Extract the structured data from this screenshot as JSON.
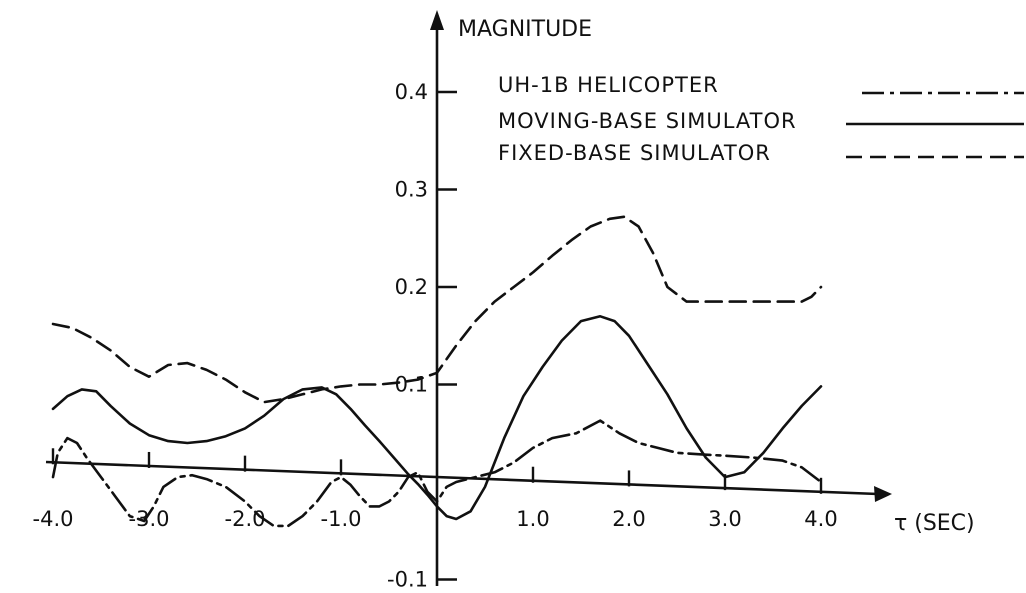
{
  "chart_data": {
    "type": "line",
    "ylabel": "MAGNITUDE",
    "xlabel": "τ (SEC)",
    "x_ticks": [
      {
        "value": -4.0,
        "label": "-4.0"
      },
      {
        "value": -3.0,
        "label": "-3.0"
      },
      {
        "value": -2.0,
        "label": "-2.0"
      },
      {
        "value": -1.0,
        "label": "-1.0"
      },
      {
        "value": 1.0,
        "label": "1.0"
      },
      {
        "value": 2.0,
        "label": "2.0"
      },
      {
        "value": 3.0,
        "label": "3.0"
      },
      {
        "value": 4.0,
        "label": "4.0"
      }
    ],
    "y_ticks": [
      {
        "value": 0.4,
        "label": "0.4"
      },
      {
        "value": 0.3,
        "label": "0.3"
      },
      {
        "value": 0.2,
        "label": "0.2"
      },
      {
        "value": 0.1,
        "label": "0.1"
      },
      {
        "value": -0.1,
        "label": "-0.1"
      }
    ],
    "xlim": [
      -4.0,
      4.0
    ],
    "ylim": [
      -0.1,
      0.45
    ],
    "grid": false,
    "legend_position": "top-right",
    "series": [
      {
        "name": "UH-1B HELICOPTER",
        "style": "dash-dot",
        "x": [
          -4.0,
          -3.95,
          -3.85,
          -3.75,
          -3.65,
          -3.5,
          -3.35,
          -3.2,
          -3.05,
          -2.95,
          -2.85,
          -2.7,
          -2.55,
          -2.4,
          -2.2,
          -2.0,
          -1.85,
          -1.7,
          -1.55,
          -1.4,
          -1.25,
          -1.1,
          -1.0,
          -0.9,
          -0.8,
          -0.7,
          -0.6,
          -0.5,
          -0.4,
          -0.3,
          -0.2,
          -0.1,
          0.0,
          0.1,
          0.2,
          0.4,
          0.6,
          0.8,
          1.0,
          1.2,
          1.45,
          1.7,
          1.9,
          2.1,
          2.3,
          2.5,
          2.8,
          3.0,
          3.3,
          3.6,
          3.8,
          4.0
        ],
        "y": [
          0.005,
          0.03,
          0.045,
          0.04,
          0.025,
          0.005,
          -0.015,
          -0.035,
          -0.04,
          -0.025,
          -0.005,
          0.005,
          0.007,
          0.003,
          -0.005,
          -0.02,
          -0.035,
          -0.045,
          -0.045,
          -0.035,
          -0.02,
          0.0,
          0.005,
          -0.003,
          -0.015,
          -0.025,
          -0.025,
          -0.02,
          -0.01,
          0.005,
          0.01,
          -0.01,
          -0.02,
          -0.005,
          0.0,
          0.005,
          0.01,
          0.02,
          0.035,
          0.045,
          0.05,
          0.063,
          0.05,
          0.04,
          0.035,
          0.03,
          0.028,
          0.027,
          0.025,
          0.022,
          0.015,
          0.0
        ]
      },
      {
        "name": "MOVING-BASE SIMULATOR",
        "style": "solid",
        "x": [
          -4.0,
          -3.85,
          -3.7,
          -3.55,
          -3.4,
          -3.2,
          -3.0,
          -2.8,
          -2.6,
          -2.4,
          -2.2,
          -2.0,
          -1.8,
          -1.6,
          -1.4,
          -1.2,
          -1.05,
          -0.9,
          -0.75,
          -0.6,
          -0.45,
          -0.3,
          -0.2,
          -0.1,
          0.0,
          0.1,
          0.2,
          0.35,
          0.5,
          0.7,
          0.9,
          1.1,
          1.3,
          1.5,
          1.7,
          1.85,
          2.0,
          2.2,
          2.4,
          2.6,
          2.8,
          3.0,
          3.2,
          3.4,
          3.6,
          3.8,
          4.0
        ],
        "y": [
          0.075,
          0.088,
          0.095,
          0.093,
          0.078,
          0.06,
          0.048,
          0.042,
          0.04,
          0.042,
          0.047,
          0.055,
          0.068,
          0.085,
          0.095,
          0.097,
          0.09,
          0.075,
          0.058,
          0.042,
          0.025,
          0.008,
          -0.002,
          -0.013,
          -0.025,
          -0.035,
          -0.038,
          -0.03,
          -0.005,
          0.045,
          0.088,
          0.118,
          0.145,
          0.165,
          0.17,
          0.165,
          0.15,
          0.12,
          0.09,
          0.055,
          0.025,
          0.005,
          0.01,
          0.03,
          0.055,
          0.078,
          0.098
        ]
      },
      {
        "name": "FIXED-BASE SIMULATOR",
        "style": "dashed",
        "x": [
          -4.0,
          -3.8,
          -3.6,
          -3.4,
          -3.2,
          -3.0,
          -2.8,
          -2.6,
          -2.4,
          -2.2,
          -2.0,
          -1.8,
          -1.6,
          -1.4,
          -1.2,
          -1.0,
          -0.8,
          -0.6,
          -0.4,
          -0.2,
          0.0,
          0.2,
          0.4,
          0.6,
          0.8,
          1.0,
          1.2,
          1.4,
          1.6,
          1.8,
          1.95,
          2.1,
          2.25,
          2.4,
          2.6,
          3.0,
          3.4,
          3.8,
          3.9,
          4.0
        ],
        "y": [
          0.162,
          0.158,
          0.148,
          0.135,
          0.118,
          0.108,
          0.12,
          0.122,
          0.115,
          0.105,
          0.092,
          0.082,
          0.085,
          0.09,
          0.095,
          0.098,
          0.1,
          0.1,
          0.102,
          0.105,
          0.112,
          0.14,
          0.165,
          0.185,
          0.2,
          0.215,
          0.232,
          0.248,
          0.262,
          0.27,
          0.272,
          0.262,
          0.235,
          0.2,
          0.185,
          0.185,
          0.185,
          0.185,
          0.19,
          0.2
        ]
      }
    ]
  }
}
